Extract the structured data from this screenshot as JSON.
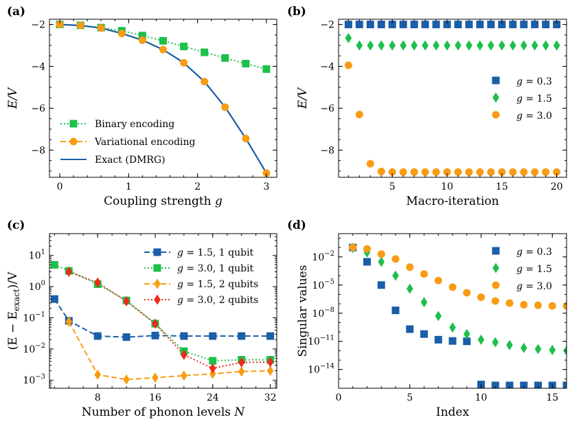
{
  "colors": {
    "blue": "#1a5ea8",
    "green": "#1cc04a",
    "orange": "#f89c14",
    "red": "#ee2a1c",
    "navy": "#1a5ea8"
  },
  "chart_data": [
    {
      "panel": "(a)",
      "type": "line",
      "title": "",
      "xlabel": "Coupling strength g",
      "ylabel": "E/V",
      "xlim": [
        -0.15,
        3.15
      ],
      "ylim": [
        -9.3,
        -1.75
      ],
      "xticks": [
        0,
        1,
        2,
        3
      ],
      "yticks": [
        -8,
        -6,
        -4,
        -2
      ],
      "legend_position": "lower-left",
      "series": [
        {
          "name": "Binary encoding",
          "style": "dotted",
          "marker": "square",
          "color": "#1cc04a",
          "x": [
            0,
            0.3,
            0.6,
            0.9,
            1.2,
            1.5,
            1.8,
            2.1,
            2.4,
            2.7,
            3.0
          ],
          "y": [
            -2.0,
            -2.04,
            -2.15,
            -2.3,
            -2.53,
            -2.78,
            -3.05,
            -3.33,
            -3.6,
            -3.87,
            -4.13
          ]
        },
        {
          "name": "Variational encoding",
          "style": "dashed",
          "marker": "circle",
          "color": "#f89c14",
          "x": [
            0,
            0.3,
            0.6,
            0.9,
            1.2,
            1.5,
            1.8,
            2.1,
            2.4,
            2.7,
            3.0
          ],
          "y": [
            -2.0,
            -2.05,
            -2.17,
            -2.43,
            -2.75,
            -3.2,
            -3.83,
            -4.73,
            -5.95,
            -7.45,
            -9.1
          ]
        },
        {
          "name": "Exact (DMRG)",
          "style": "solid",
          "marker": "none",
          "color": "#1a5ea8",
          "x": [
            0,
            0.3,
            0.6,
            0.9,
            1.2,
            1.5,
            1.8,
            2.1,
            2.4,
            2.7,
            3.0
          ],
          "y": [
            -2.0,
            -2.05,
            -2.17,
            -2.43,
            -2.75,
            -3.2,
            -3.83,
            -4.73,
            -5.95,
            -7.45,
            -9.1
          ]
        }
      ]
    },
    {
      "panel": "(b)",
      "type": "scatter",
      "title": "",
      "xlabel": "Macro-iteration",
      "ylabel": "E/V",
      "xlim": [
        0.1,
        20.9
      ],
      "ylim": [
        -9.3,
        -1.75
      ],
      "xticks": [
        5,
        10,
        15,
        20
      ],
      "yticks": [
        -8,
        -6,
        -4,
        -2
      ],
      "legend_position": "right",
      "series": [
        {
          "name": "g = 0.3",
          "marker": "square",
          "color": "#1a5ea8",
          "x": [
            1,
            2,
            3,
            4,
            5,
            6,
            7,
            8,
            9,
            10,
            11,
            12,
            13,
            14,
            15,
            16,
            17,
            18,
            19,
            20
          ],
          "y": [
            -2,
            -2,
            -2,
            -2,
            -2,
            -2,
            -2,
            -2,
            -2,
            -2,
            -2,
            -2,
            -2,
            -2,
            -2,
            -2,
            -2,
            -2,
            -2,
            -2
          ]
        },
        {
          "name": "g = 1.5",
          "marker": "diamond",
          "color": "#1cc04a",
          "x": [
            1,
            2,
            3,
            4,
            5,
            6,
            7,
            8,
            9,
            10,
            11,
            12,
            13,
            14,
            15,
            16,
            17,
            18,
            19,
            20
          ],
          "y": [
            -2.65,
            -3.0,
            -3.0,
            -3.0,
            -3.0,
            -3.0,
            -3.0,
            -3.0,
            -3.0,
            -3.0,
            -3.0,
            -3.0,
            -3.0,
            -3.0,
            -3.0,
            -3.0,
            -3.0,
            -3.0,
            -3.0,
            -3.0
          ]
        },
        {
          "name": "g = 3.0",
          "marker": "circle",
          "color": "#f89c14",
          "x": [
            1,
            2,
            3,
            4,
            5,
            6,
            7,
            8,
            9,
            10,
            11,
            12,
            13,
            14,
            15,
            16,
            17,
            18,
            19,
            20
          ],
          "y": [
            -3.95,
            -6.3,
            -8.65,
            -9.02,
            -9.05,
            -9.05,
            -9.05,
            -9.05,
            -9.05,
            -9.05,
            -9.05,
            -9.05,
            -9.05,
            -9.05,
            -9.05,
            -9.05,
            -9.05,
            -9.05,
            -9.05,
            -9.05
          ]
        }
      ]
    },
    {
      "panel": "(c)",
      "type": "line",
      "title": "",
      "xlabel": "Number of phonon levels N",
      "ylabel": "(E − E_exact)/V",
      "yscale": "log",
      "xlim": [
        1.3,
        32.9
      ],
      "ylim": [
        0.00055,
        50
      ],
      "xticks": [
        8,
        16,
        24,
        32
      ],
      "yticks": [
        0.001,
        0.01,
        0.1,
        1,
        10
      ],
      "yticklabels": [
        "10^-3",
        "10^-2",
        "10^-1",
        "10^0",
        "10^1"
      ],
      "legend_position": "top-right",
      "series": [
        {
          "name": "g = 1.5, 1 qubit",
          "style": "dashed",
          "marker": "square",
          "color": "#1a5ea8",
          "x": [
            2,
            4,
            8,
            12,
            16,
            20,
            24,
            28,
            32
          ],
          "y": [
            0.4,
            0.08,
            0.026,
            0.024,
            0.027,
            0.026,
            0.026,
            0.026,
            0.026
          ]
        },
        {
          "name": "g = 3.0, 1 qubit",
          "style": "dotted",
          "marker": "square",
          "color": "#1cc04a",
          "x": [
            2,
            4,
            8,
            12,
            16,
            20,
            24,
            28,
            32
          ],
          "y": [
            5.0,
            3.2,
            1.2,
            0.36,
            0.065,
            0.0085,
            0.0042,
            0.0045,
            0.0045
          ]
        },
        {
          "name": "g = 1.5, 2 qubits",
          "style": "dashed",
          "marker": "diamond",
          "color": "#f89c14",
          "x": [
            4,
            8,
            12,
            16,
            20,
            24,
            28,
            32
          ],
          "y": [
            0.075,
            0.0015,
            0.00105,
            0.0012,
            0.0014,
            0.0016,
            0.0019,
            0.002
          ]
        },
        {
          "name": "g = 3.0, 2 qubits",
          "style": "dotted",
          "marker": "diamond",
          "color": "#ee2a1c",
          "x": [
            4,
            8,
            12,
            16,
            20,
            24,
            28,
            32
          ],
          "y": [
            3.0,
            1.35,
            0.34,
            0.065,
            0.0065,
            0.0024,
            0.0037,
            0.0038
          ]
        }
      ]
    },
    {
      "panel": "(d)",
      "type": "scatter",
      "title": "",
      "xlabel": "Index",
      "ylabel": "Singular values",
      "yscale": "log",
      "xlim": [
        0,
        16
      ],
      "ylim": [
        1e-16,
        3
      ],
      "xticks": [
        0,
        5,
        10,
        15
      ],
      "yticks": [
        1e-14,
        1e-11,
        1e-08,
        1e-05,
        0.01
      ],
      "yticklabels": [
        "10^-14",
        "10^-11",
        "10^-8",
        "10^-5",
        "10^-2"
      ],
      "legend_position": "top-right",
      "series": [
        {
          "name": "g = 0.3",
          "marker": "square",
          "color": "#1a5ea8",
          "x": [
            1,
            2,
            3,
            4,
            5,
            6,
            7,
            8,
            9,
            10,
            11,
            12,
            13,
            14,
            15,
            16
          ],
          "y": [
            0.1,
            0.003,
            1e-05,
            2e-08,
            2e-10,
            6e-11,
            1.5e-11,
            1.1e-11,
            1e-11,
            2.5e-16,
            2e-16,
            2e-16,
            2e-16,
            2e-16,
            2e-16,
            2e-16
          ]
        },
        {
          "name": "g = 1.5",
          "marker": "diamond",
          "color": "#1cc04a",
          "x": [
            1,
            2,
            3,
            4,
            5,
            6,
            7,
            8,
            9,
            10,
            11,
            12,
            13,
            14,
            15,
            16
          ],
          "y": [
            0.09,
            0.03,
            0.003,
            0.0001,
            4e-06,
            1.5e-07,
            5e-09,
            3e-10,
            6e-11,
            1.5e-11,
            8e-12,
            4e-12,
            2e-12,
            1.5e-12,
            1.2e-12,
            1e-12
          ]
        },
        {
          "name": "g = 3.0",
          "marker": "circle",
          "color": "#f89c14",
          "x": [
            1,
            2,
            3,
            4,
            5,
            6,
            7,
            8,
            9,
            10,
            11,
            12,
            13,
            14,
            15,
            16
          ],
          "y": [
            0.1,
            0.07,
            0.02,
            0.006,
            0.0008,
            0.00015,
            3e-05,
            6e-06,
            1.5e-06,
            5e-07,
            2e-07,
            1.2e-07,
            8e-08,
            7e-08,
            6e-08,
            6e-08
          ]
        }
      ]
    }
  ]
}
